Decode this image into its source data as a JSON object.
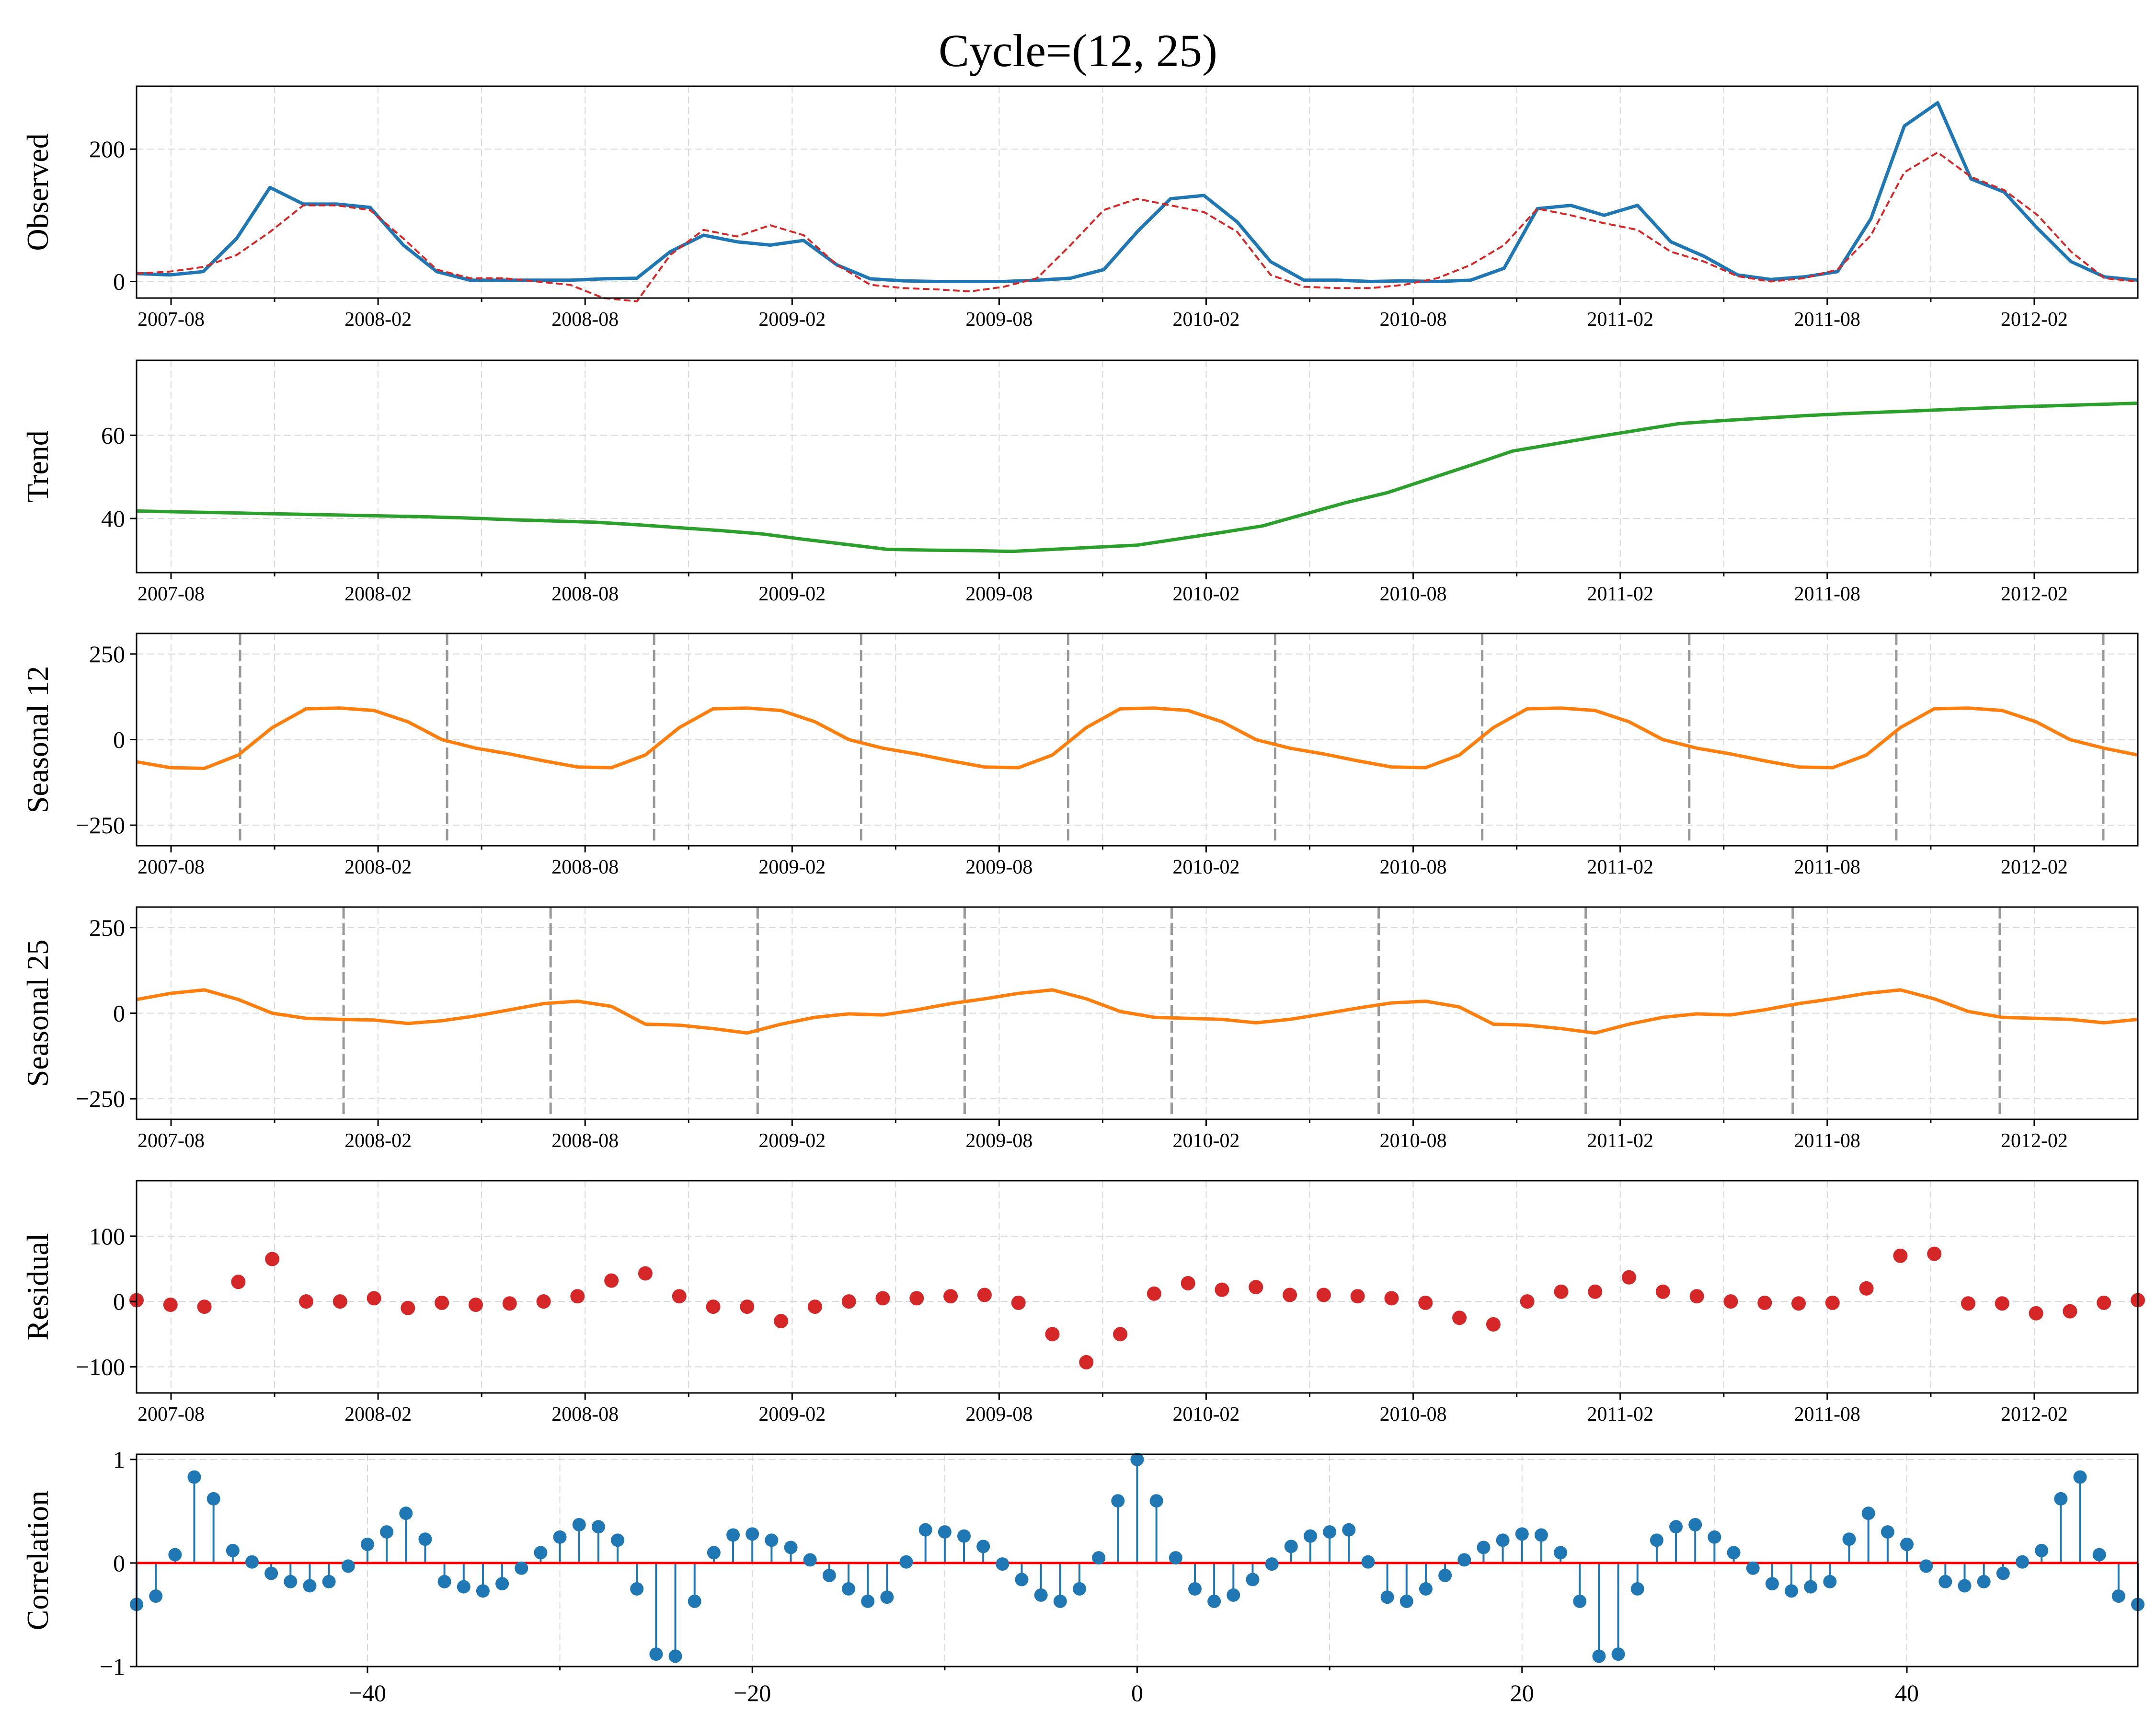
{
  "title": "Cycle=(12, 25)",
  "colors": {
    "observed": "#1f77b4",
    "fitted": "#d62728",
    "trend": "#2ca02c",
    "seasonal": "#ff7f0e",
    "residual": "#d62728",
    "correlation": "#1f77b4",
    "zero_line": "#ff0000",
    "cycle_marker": "#999999"
  },
  "chart_data": [
    {
      "panel": "observed",
      "type": "line",
      "ylabel": "Observed",
      "ylim": [
        -25,
        295
      ],
      "yticks": [
        0,
        200
      ],
      "x_start": "2007-07",
      "x_end": "2012-05",
      "x_tick_labels": [
        "2007-08",
        "2008-02",
        "2008-08",
        "2009-02",
        "2009-08",
        "2010-02",
        "2010-08",
        "2011-02",
        "2011-08",
        "2012-02"
      ],
      "grid": true,
      "series": [
        {
          "values": [
            12,
            10,
            15,
            65,
            142,
            117,
            117,
            112,
            55,
            15,
            2,
            2,
            2,
            2,
            4,
            5,
            45,
            70,
            60,
            55,
            62,
            25,
            4,
            1,
            0,
            0,
            0,
            2,
            5,
            18,
            75,
            125,
            130,
            90,
            30,
            2,
            2,
            0,
            1,
            0,
            2,
            20,
            110,
            115,
            100,
            115,
            60,
            38,
            10,
            3,
            7,
            15,
            95,
            235,
            270,
            155,
            135,
            80,
            30,
            7,
            2
          ]
        },
        {
          "style": "dashed",
          "values": [
            12,
            15,
            22,
            40,
            75,
            115,
            115,
            108,
            65,
            18,
            5,
            5,
            0,
            -5,
            -25,
            -30,
            40,
            78,
            68,
            85,
            70,
            25,
            -5,
            -10,
            -12,
            -15,
            -8,
            5,
            55,
            108,
            125,
            115,
            105,
            75,
            10,
            -8,
            -10,
            -10,
            -5,
            5,
            25,
            55,
            110,
            100,
            88,
            78,
            45,
            30,
            8,
            0,
            5,
            18,
            70,
            165,
            195,
            158,
            138,
            100,
            45,
            5,
            0
          ]
        }
      ]
    },
    {
      "panel": "trend",
      "type": "line",
      "ylabel": "Trend",
      "ylim": [
        27,
        78
      ],
      "yticks": [
        40,
        60
      ],
      "x_tick_labels": [
        "2007-08",
        "2008-02",
        "2008-08",
        "2009-02",
        "2009-08",
        "2010-02",
        "2010-08",
        "2011-02",
        "2011-08",
        "2012-02"
      ],
      "grid": true,
      "series": [
        {
          "values": [
            41.8,
            41.6,
            41.4,
            41.2,
            41.0,
            40.8,
            40.6,
            40.4,
            40.1,
            39.7,
            39.4,
            39.1,
            38.5,
            37.8,
            37.1,
            36.3,
            35.0,
            33.8,
            32.6,
            32.4,
            32.3,
            32.1,
            32.6,
            33.1,
            33.6,
            35.1,
            36.6,
            38.2,
            41.0,
            43.8,
            46.2,
            49.5,
            52.8,
            56.2,
            57.9,
            59.6,
            61.2,
            62.8,
            63.5,
            64.1,
            64.7,
            65.2,
            65.6,
            66.0,
            66.4,
            66.8,
            67.1,
            67.4,
            67.7
          ]
        }
      ]
    },
    {
      "panel": "seasonal_12",
      "type": "line",
      "ylabel": "Seasonal 12",
      "ylim": [
        -310,
        310
      ],
      "yticks": [
        -250,
        0,
        250
      ],
      "x_tick_labels": [
        "2007-08",
        "2008-02",
        "2008-08",
        "2009-02",
        "2009-08",
        "2010-02",
        "2010-08",
        "2011-02",
        "2011-08",
        "2012-02"
      ],
      "grid": true,
      "cycle_marker_months": [
        3,
        9,
        15,
        21,
        27,
        33,
        39,
        45,
        51,
        57
      ],
      "series": [
        {
          "values": [
            -65,
            -82,
            -84,
            -45,
            35,
            90,
            92,
            85,
            52,
            0,
            -25,
            -42,
            -62,
            -80,
            -82,
            -45,
            35,
            90,
            92,
            85,
            52,
            0,
            -25,
            -42,
            -62,
            -80,
            -82,
            -45,
            35,
            90,
            92,
            85,
            52,
            0,
            -25,
            -42,
            -62,
            -80,
            -82,
            -45,
            35,
            90,
            92,
            85,
            52,
            0,
            -25,
            -42,
            -62,
            -80,
            -82,
            -45,
            35,
            90,
            92,
            85,
            52,
            0,
            -25,
            -45
          ]
        }
      ]
    },
    {
      "panel": "seasonal_25",
      "type": "line",
      "ylabel": "Seasonal 25",
      "ylim": [
        -310,
        310
      ],
      "yticks": [
        -250,
        0,
        250
      ],
      "x_tick_labels": [
        "2007-08",
        "2008-02",
        "2008-08",
        "2009-02",
        "2009-08",
        "2010-02",
        "2010-08",
        "2011-02",
        "2011-08",
        "2012-02"
      ],
      "grid": true,
      "cycle_marker_months": [
        6,
        12,
        18,
        24,
        30,
        36,
        42,
        48,
        54,
        60
      ],
      "series": [
        {
          "values": [
            40,
            58,
            68,
            40,
            0,
            -15,
            -18,
            -20,
            -30,
            -22,
            -8,
            10,
            28,
            35,
            20,
            -32,
            -35,
            -45,
            -58,
            -32,
            -12,
            -2,
            -5,
            10,
            28,
            42,
            58,
            68,
            42,
            5,
            -12,
            -15,
            -18,
            -28,
            -18,
            -2,
            15,
            30,
            35,
            18,
            -32,
            -35,
            -45,
            -58,
            -32,
            -12,
            -2,
            -5,
            10,
            28,
            42,
            58,
            68,
            42,
            5,
            -12,
            -15,
            -18,
            -28,
            -18
          ]
        }
      ]
    },
    {
      "panel": "residual",
      "type": "scatter",
      "ylabel": "Residual",
      "ylim": [
        -140,
        185
      ],
      "yticks": [
        -100,
        0,
        100
      ],
      "x_tick_labels": [
        "2007-08",
        "2008-02",
        "2008-08",
        "2009-02",
        "2009-08",
        "2010-02",
        "2010-08",
        "2011-02",
        "2011-08",
        "2012-02"
      ],
      "grid": true,
      "series": [
        {
          "values": [
            2,
            -5,
            -8,
            30,
            65,
            0,
            0,
            5,
            -10,
            -2,
            -5,
            -3,
            0,
            8,
            32,
            43,
            8,
            -8,
            -8,
            -30,
            -8,
            0,
            5,
            5,
            8,
            10,
            -2,
            -50,
            -93,
            -50,
            12,
            28,
            18,
            22,
            10,
            10,
            8,
            5,
            -2,
            -25,
            -35,
            0,
            15,
            15,
            37,
            15,
            8,
            0,
            -2,
            -3,
            -2,
            20,
            70,
            73,
            -3,
            -3,
            -18,
            -15,
            -2,
            2
          ]
        }
      ]
    },
    {
      "panel": "correlation",
      "type": "stem",
      "ylabel": "Correlation",
      "xlim": [
        -52,
        52
      ],
      "ylim": [
        -1,
        1.05
      ],
      "yticks": [
        -1,
        0,
        1
      ],
      "x_tick_labels": [
        "−40",
        "−20",
        "0",
        "20",
        "40"
      ],
      "x_tick_values": [
        -40,
        -20,
        0,
        20,
        40
      ],
      "grid": true,
      "lags": [
        -52,
        -51,
        -50,
        -49,
        -48,
        -47,
        -46,
        -45,
        -44,
        -43,
        -42,
        -41,
        -40,
        -39,
        -38,
        -37,
        -36,
        -35,
        -34,
        -33,
        -32,
        -31,
        -30,
        -29,
        -28,
        -27,
        -26,
        -25,
        -24,
        -23,
        -22,
        -21,
        -20,
        -19,
        -18,
        -17,
        -16,
        -15,
        -14,
        -13,
        -12,
        -11,
        -10,
        -9,
        -8,
        -7,
        -6,
        -5,
        -4,
        -3,
        -2,
        -1,
        0,
        1,
        2,
        3,
        4,
        5,
        6,
        7,
        8,
        9,
        10,
        11,
        12,
        13,
        14,
        15,
        16,
        17,
        18,
        19,
        20,
        21,
        22,
        23,
        24,
        25,
        26,
        27,
        28,
        29,
        30,
        31,
        32,
        33,
        34,
        35,
        36,
        37,
        38,
        39,
        40,
        41,
        42,
        43,
        44,
        45,
        46,
        47,
        48,
        49,
        50,
        51,
        52
      ],
      "values": [
        -0.4,
        -0.32,
        0.08,
        0.83,
        0.62,
        0.12,
        0.01,
        -0.1,
        -0.18,
        -0.22,
        -0.18,
        -0.03,
        0.18,
        0.3,
        0.48,
        0.23,
        -0.18,
        -0.23,
        -0.27,
        -0.2,
        -0.05,
        0.1,
        0.25,
        0.37,
        0.35,
        0.22,
        -0.25,
        -0.88,
        -0.9,
        -0.37,
        0.1,
        0.27,
        0.28,
        0.22,
        0.15,
        0.03,
        -0.12,
        -0.25,
        -0.37,
        -0.33,
        0.01,
        0.32,
        0.3,
        0.26,
        0.16,
        -0.01,
        -0.16,
        -0.31,
        -0.37,
        -0.25,
        0.05,
        0.6,
        1.0,
        0.6,
        0.05,
        -0.25,
        -0.37,
        -0.31,
        -0.16,
        -0.01,
        0.16,
        0.26,
        0.3,
        0.32,
        0.01,
        -0.33,
        -0.37,
        -0.25,
        -0.12,
        0.03,
        0.15,
        0.22,
        0.28,
        0.27,
        0.1,
        -0.37,
        -0.9,
        -0.88,
        -0.25,
        0.22,
        0.35,
        0.37,
        0.25,
        0.1,
        -0.05,
        -0.2,
        -0.27,
        -0.23,
        -0.18,
        0.23,
        0.48,
        0.3,
        0.18,
        -0.03,
        -0.18,
        -0.22,
        -0.18,
        -0.1,
        0.01,
        0.12,
        0.62,
        0.83,
        0.08,
        -0.32,
        -0.4
      ]
    }
  ]
}
